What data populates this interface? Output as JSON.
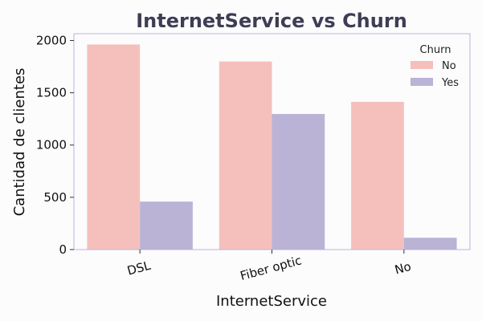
{
  "chart_data": {
    "type": "bar",
    "title": "InternetService vs Churn",
    "xlabel": "InternetService",
    "ylabel": "Cantidad de clientes",
    "categories": [
      "DSL",
      "Fiber optic",
      "No"
    ],
    "series": [
      {
        "name": "No",
        "values": [
          1962,
          1799,
          1413
        ],
        "color": "#f5c0bc"
      },
      {
        "name": "Yes",
        "values": [
          459,
          1297,
          113
        ],
        "color": "#bab3d6"
      }
    ],
    "ylim": [
      0,
      2065
    ],
    "yticks": [
      0,
      500,
      1000,
      1500,
      2000
    ],
    "legend": {
      "title": "Churn",
      "placement": "top-right"
    },
    "grid": false,
    "colors": {
      "axes_frame": "#b7b3de",
      "title": "#3d3d55",
      "background": "#fcfcfd"
    }
  }
}
